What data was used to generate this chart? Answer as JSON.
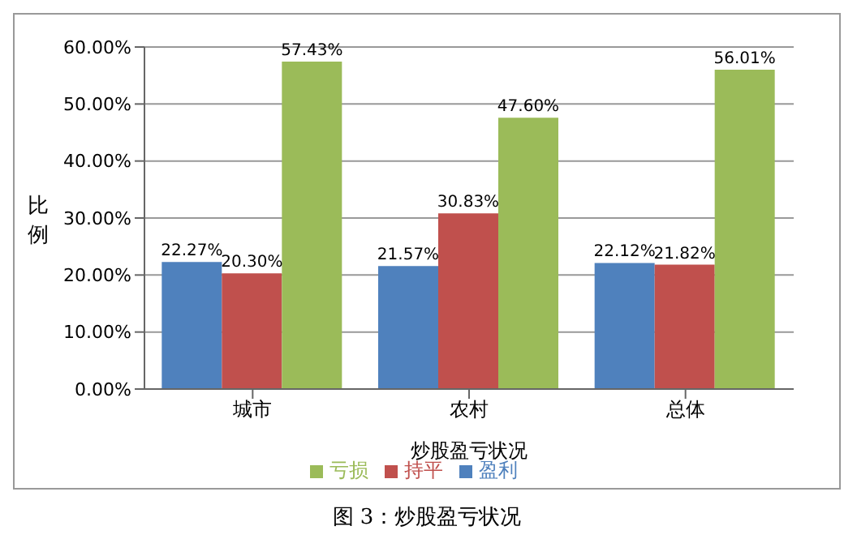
{
  "chart_data": {
    "type": "bar",
    "xlabel": "炒股盈亏状况",
    "ylabel": "比例",
    "annotations": [
      "图 3：炒股盈亏状况"
    ],
    "categories": [
      "城市",
      "农村",
      "总体"
    ],
    "series": [
      {
        "name": "盈利",
        "color": "#4f81bd",
        "values": [
          22.27,
          21.57,
          22.12
        ],
        "value_labels": [
          "22.27%",
          "21.57%",
          "22.12%"
        ]
      },
      {
        "name": "持平",
        "color": "#c0504d",
        "values": [
          20.3,
          30.83,
          21.82
        ],
        "value_labels": [
          "20.30%",
          "30.83%",
          "21.82%"
        ]
      },
      {
        "name": "亏损",
        "color": "#9bbb59",
        "values": [
          57.43,
          47.6,
          56.01
        ],
        "value_labels": [
          "57.43%",
          "47.60%",
          "56.01%"
        ]
      }
    ],
    "ylim": [
      0,
      60
    ],
    "yticks": [
      {
        "value": 0,
        "label": "0.00%"
      },
      {
        "value": 10,
        "label": "10.00%"
      },
      {
        "value": 20,
        "label": "20.00%"
      },
      {
        "value": 30,
        "label": "30.00%"
      },
      {
        "value": 40,
        "label": "40.00%"
      },
      {
        "value": 50,
        "label": "50.00%"
      },
      {
        "value": 60,
        "label": "60.00%"
      }
    ],
    "grid": "y",
    "legend": "bottom"
  }
}
